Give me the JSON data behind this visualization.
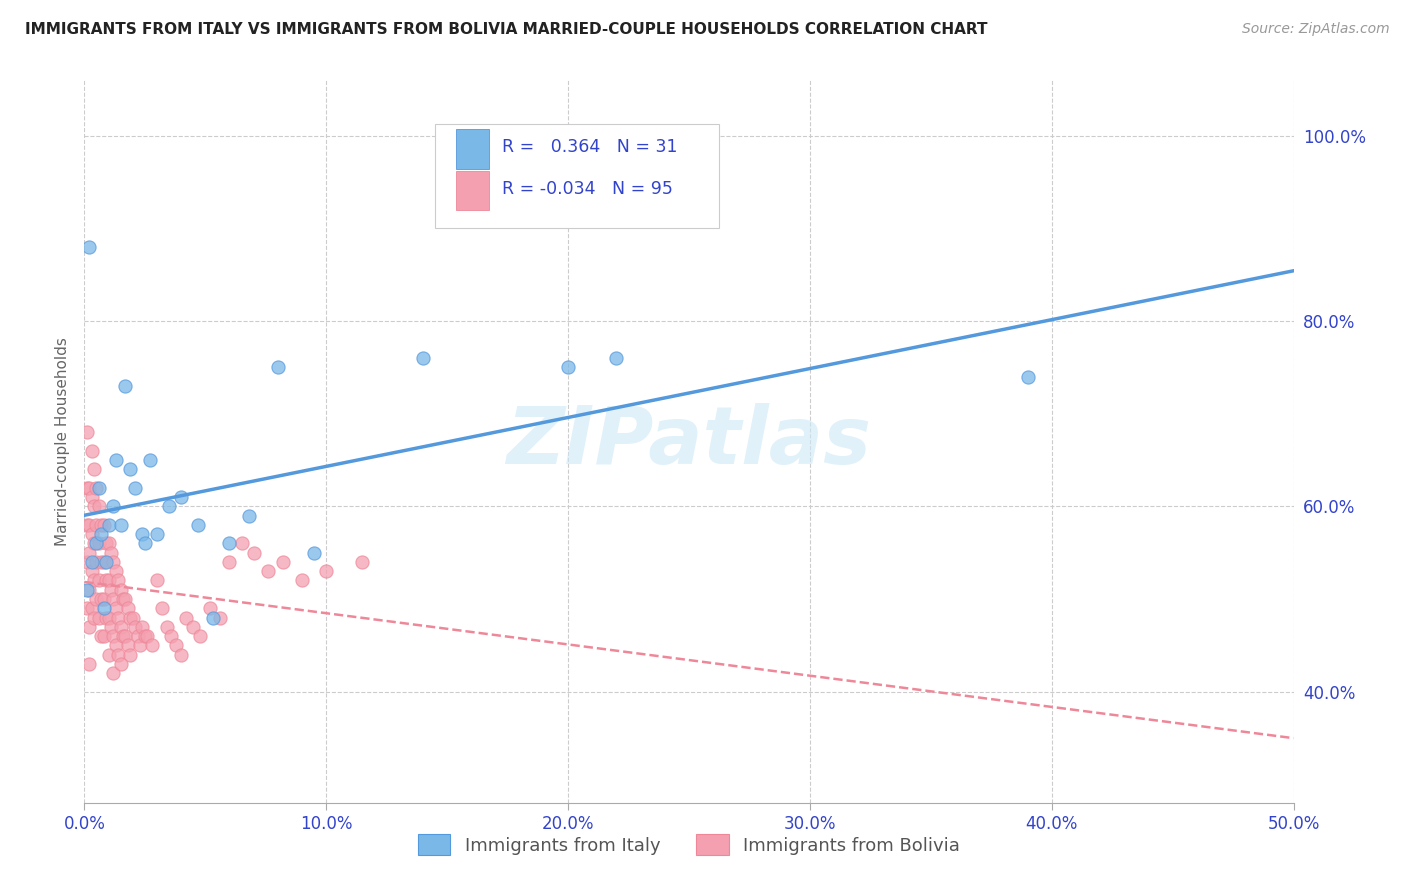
{
  "title": "IMMIGRANTS FROM ITALY VS IMMIGRANTS FROM BOLIVIA MARRIED-COUPLE HOUSEHOLDS CORRELATION CHART",
  "source": "Source: ZipAtlas.com",
  "ylabel": "Married-couple Households",
  "xlim": [
    0.0,
    0.5
  ],
  "xtick_labels": [
    "0.0%",
    "10.0%",
    "20.0%",
    "30.0%",
    "40.0%",
    "50.0%"
  ],
  "xtick_vals": [
    0.0,
    0.1,
    0.2,
    0.3,
    0.4,
    0.5
  ],
  "ytick_labels": [
    "40.0%",
    "60.0%",
    "80.0%",
    "100.0%"
  ],
  "ytick_vals": [
    0.4,
    0.6,
    0.8,
    1.0
  ],
  "italy_color": "#7ab8e8",
  "bolivia_color": "#f4a0b0",
  "italy_line_color": "#5599dd",
  "bolivia_line_color": "#ee8899",
  "italy_R": 0.364,
  "italy_N": 31,
  "bolivia_R": -0.034,
  "bolivia_N": 95,
  "legend_text_color": "#3344cc",
  "italy_scatter_x": [
    0.001,
    0.002,
    0.003,
    0.005,
    0.006,
    0.007,
    0.008,
    0.009,
    0.01,
    0.012,
    0.013,
    0.015,
    0.017,
    0.019,
    0.021,
    0.024,
    0.027,
    0.03,
    0.035,
    0.04,
    0.047,
    0.053,
    0.06,
    0.068,
    0.08,
    0.095,
    0.14,
    0.22,
    0.39,
    0.025,
    0.2
  ],
  "italy_scatter_y": [
    0.51,
    0.88,
    0.54,
    0.56,
    0.62,
    0.57,
    0.49,
    0.54,
    0.58,
    0.6,
    0.65,
    0.58,
    0.73,
    0.64,
    0.62,
    0.57,
    0.65,
    0.57,
    0.6,
    0.61,
    0.58,
    0.48,
    0.56,
    0.59,
    0.75,
    0.55,
    0.76,
    0.76,
    0.74,
    0.56,
    0.75
  ],
  "bolivia_scatter_x": [
    0.001,
    0.001,
    0.001,
    0.001,
    0.001,
    0.002,
    0.002,
    0.002,
    0.002,
    0.002,
    0.002,
    0.003,
    0.003,
    0.003,
    0.003,
    0.003,
    0.004,
    0.004,
    0.004,
    0.004,
    0.004,
    0.005,
    0.005,
    0.005,
    0.005,
    0.006,
    0.006,
    0.006,
    0.006,
    0.007,
    0.007,
    0.007,
    0.007,
    0.008,
    0.008,
    0.008,
    0.008,
    0.009,
    0.009,
    0.009,
    0.01,
    0.01,
    0.01,
    0.01,
    0.011,
    0.011,
    0.011,
    0.012,
    0.012,
    0.012,
    0.012,
    0.013,
    0.013,
    0.013,
    0.014,
    0.014,
    0.014,
    0.015,
    0.015,
    0.015,
    0.016,
    0.016,
    0.017,
    0.017,
    0.018,
    0.018,
    0.019,
    0.019,
    0.02,
    0.021,
    0.022,
    0.023,
    0.024,
    0.025,
    0.026,
    0.028,
    0.03,
    0.032,
    0.034,
    0.036,
    0.038,
    0.04,
    0.042,
    0.045,
    0.048,
    0.052,
    0.056,
    0.06,
    0.065,
    0.07,
    0.076,
    0.082,
    0.09,
    0.1,
    0.115
  ],
  "bolivia_scatter_y": [
    0.62,
    0.68,
    0.58,
    0.54,
    0.49,
    0.62,
    0.58,
    0.55,
    0.51,
    0.47,
    0.43,
    0.66,
    0.61,
    0.57,
    0.53,
    0.49,
    0.64,
    0.6,
    0.56,
    0.52,
    0.48,
    0.62,
    0.58,
    0.54,
    0.5,
    0.6,
    0.56,
    0.52,
    0.48,
    0.58,
    0.54,
    0.5,
    0.46,
    0.58,
    0.54,
    0.5,
    0.46,
    0.56,
    0.52,
    0.48,
    0.56,
    0.52,
    0.48,
    0.44,
    0.55,
    0.51,
    0.47,
    0.54,
    0.5,
    0.46,
    0.42,
    0.53,
    0.49,
    0.45,
    0.52,
    0.48,
    0.44,
    0.51,
    0.47,
    0.43,
    0.5,
    0.46,
    0.5,
    0.46,
    0.49,
    0.45,
    0.48,
    0.44,
    0.48,
    0.47,
    0.46,
    0.45,
    0.47,
    0.46,
    0.46,
    0.45,
    0.52,
    0.49,
    0.47,
    0.46,
    0.45,
    0.44,
    0.48,
    0.47,
    0.46,
    0.49,
    0.48,
    0.54,
    0.56,
    0.55,
    0.53,
    0.54,
    0.52,
    0.53,
    0.54
  ],
  "background_color": "#ffffff",
  "grid_color": "#cccccc",
  "watermark": "ZIPatlas",
  "legend_italy": "Immigrants from Italy",
  "legend_bolivia": "Immigrants from Bolivia"
}
